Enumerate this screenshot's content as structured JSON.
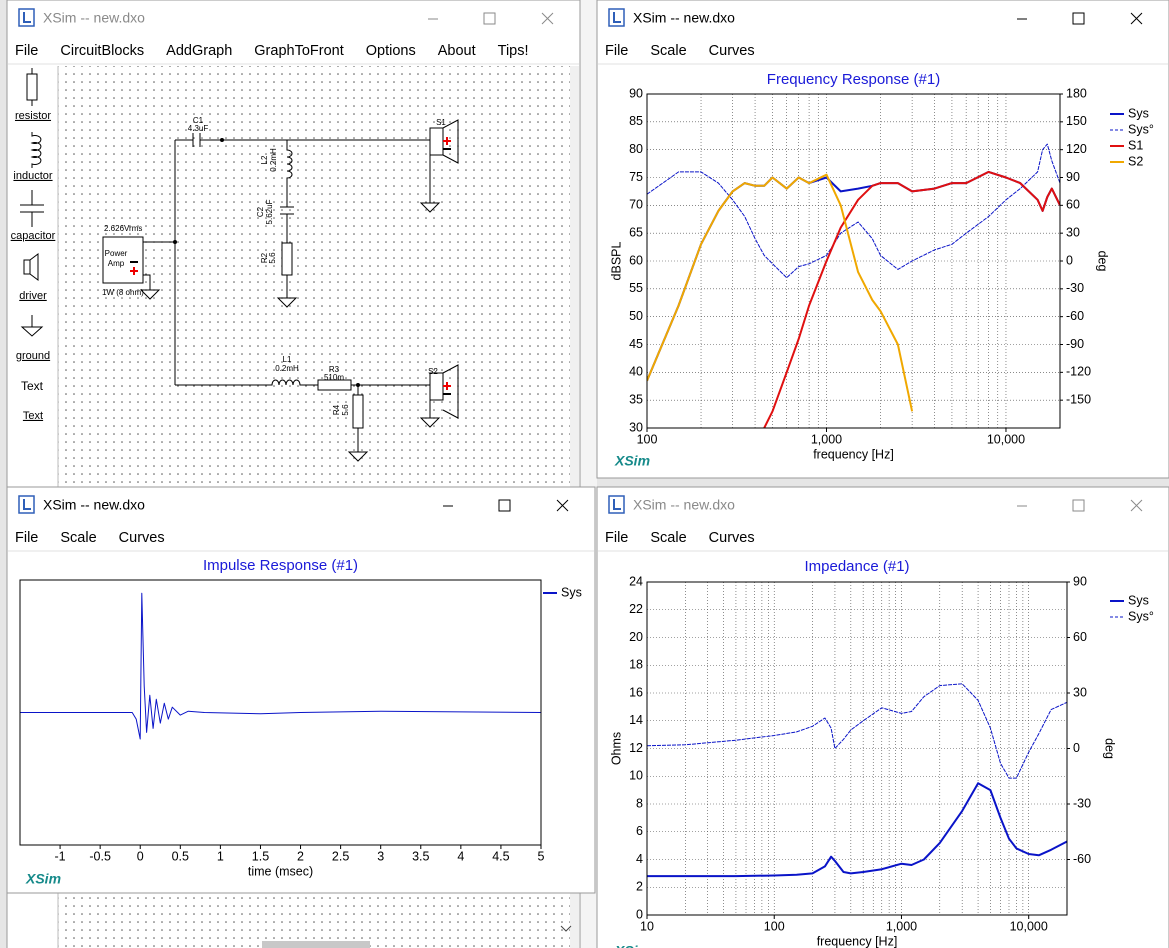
{
  "schematic_window": {
    "title": "XSim -- new.dxo",
    "menu": [
      "File",
      "CircuitBlocks",
      "AddGraph",
      "GraphToFront",
      "Options",
      "About",
      "Tips!"
    ],
    "palette": [
      "resistor",
      "inductor",
      "capacitor",
      "driver",
      "ground",
      "Text"
    ],
    "text_tool": "Text",
    "source": {
      "voltage": "2.626Vrms",
      "name": [
        "Power",
        "Amp"
      ],
      "load": "1W (8 ohm)"
    },
    "components": [
      {
        "ref": "C1",
        "value": "4.3uF"
      },
      {
        "ref": "L2",
        "value": "0.2mH"
      },
      {
        "ref": "C2",
        "value": "5.62uF"
      },
      {
        "ref": "R2",
        "value": "5.6"
      },
      {
        "ref": "L1",
        "value": "0.2mH"
      },
      {
        "ref": "R3",
        "value": "510m"
      },
      {
        "ref": "R4",
        "value": "5.6"
      }
    ],
    "drivers": [
      "S1",
      "S2"
    ]
  },
  "frequency_window": {
    "title": "XSim -- new.dxo",
    "menu": [
      "File",
      "Scale",
      "Curves"
    ],
    "chart": {
      "type": "line",
      "title": "Frequency Response (#1)",
      "brand": "XSim",
      "xlabel": "frequency [Hz]",
      "ylabel": "dBSPL",
      "y2label": "deg",
      "xscale": "log",
      "grid": true,
      "minor_grid": true,
      "xlim": [
        100,
        20000
      ],
      "xticks": [
        100,
        {
          "value": 1000,
          "label": "1,000"
        },
        {
          "value": 10000,
          "label": "10,000"
        }
      ],
      "ylim": [
        30,
        90
      ],
      "yticks": [
        30,
        35,
        40,
        45,
        50,
        55,
        60,
        65,
        70,
        75,
        80,
        85,
        90
      ],
      "y2lim": [
        -180,
        180
      ],
      "y2ticks": [
        -150,
        -120,
        -90,
        -60,
        -30,
        0,
        30,
        60,
        90,
        120,
        150,
        180
      ],
      "x": [
        100,
        150,
        200,
        250,
        300,
        350,
        400,
        450,
        500,
        600,
        700,
        800,
        1000,
        1200,
        1500,
        1800,
        2000,
        2500,
        3000,
        4000,
        5000,
        6000,
        8000,
        10000,
        12000,
        15000,
        16000,
        17000,
        18000,
        20000
      ],
      "series": [
        {
          "name": "Sys",
          "color": "#0a14c8",
          "linestyle": "solid",
          "values": [
            38.5,
            52,
            63,
            69,
            72.5,
            74,
            73.5,
            73.5,
            75,
            73,
            75,
            74,
            75,
            72.5,
            73,
            73.5,
            74,
            74,
            72.5,
            73,
            74,
            74,
            76,
            75,
            74,
            71,
            69,
            71.5,
            73,
            70
          ]
        },
        {
          "name": "Sys°",
          "color": "#0a14c8",
          "linestyle": "dashed",
          "axis": "y2",
          "values": [
            72,
            96,
            96,
            84,
            66,
            48,
            24,
            6,
            -3,
            -18,
            -6,
            -3,
            6,
            30,
            42,
            24,
            6,
            -9,
            0,
            12,
            18,
            30,
            48,
            66,
            78,
            96,
            120,
            126,
            108,
            84
          ]
        },
        {
          "name": "S1",
          "color": "#e01010",
          "linestyle": "solid",
          "values": [
            null,
            null,
            null,
            null,
            null,
            null,
            null,
            30,
            33,
            40,
            46,
            52,
            60,
            66,
            71,
            73.5,
            74,
            74,
            72.5,
            73,
            74,
            74,
            76,
            75,
            74,
            71,
            69,
            71.5,
            73,
            70
          ]
        },
        {
          "name": "S2",
          "color": "#f0a800",
          "linestyle": "solid",
          "values": [
            38.5,
            52,
            63,
            69,
            72.5,
            74,
            73.5,
            73.5,
            75,
            73,
            75,
            74,
            75.5,
            70,
            58,
            53,
            51,
            45,
            33,
            null,
            null,
            null,
            null,
            null,
            null,
            null,
            null,
            null,
            null,
            null
          ]
        }
      ]
    }
  },
  "impulse_window": {
    "title": "XSim -- new.dxo",
    "menu": [
      "File",
      "Scale",
      "Curves"
    ],
    "chart": {
      "type": "line",
      "title": "Impulse Response (#1)",
      "brand": "XSim",
      "xlabel": "time (msec)",
      "xscale": "linear",
      "grid": false,
      "xlim": [
        -1.5,
        5
      ],
      "xticks": [
        -1,
        -0.5,
        0,
        0.5,
        1,
        1.5,
        2,
        2.5,
        3,
        3.5,
        4,
        4.5,
        5
      ],
      "ylim": [
        -1,
        1
      ],
      "x": [
        -1.5,
        -0.1,
        -0.05,
        0,
        0.02,
        0.05,
        0.08,
        0.12,
        0.16,
        0.2,
        0.25,
        0.3,
        0.35,
        0.4,
        0.5,
        0.6,
        0.8,
        1.5,
        2,
        3,
        5
      ],
      "series": [
        {
          "name": "Sys",
          "color": "#0a14c8",
          "linestyle": "solid",
          "values": [
            0,
            0,
            -0.05,
            -0.2,
            0.9,
            0.2,
            -0.15,
            0.13,
            -0.12,
            0.1,
            -0.08,
            0.07,
            -0.05,
            0.04,
            -0.02,
            0.01,
            0,
            -0.01,
            0,
            0.01,
            0
          ]
        }
      ]
    }
  },
  "impedance_window": {
    "title": "XSim -- new.dxo",
    "menu": [
      "File",
      "Scale",
      "Curves"
    ],
    "chart": {
      "type": "line",
      "title": "Impedance (#1)",
      "brand": "XSim",
      "xlabel": "frequency [Hz]",
      "ylabel": "Ohms",
      "y2label": "deg",
      "xscale": "log",
      "grid": true,
      "minor_grid": true,
      "xlim": [
        10,
        20000
      ],
      "xticks": [
        10,
        100,
        {
          "value": 1000,
          "label": "1,000"
        },
        {
          "value": 10000,
          "label": "10,000"
        }
      ],
      "ylim": [
        0,
        24
      ],
      "yticks": [
        0,
        2,
        4,
        6,
        8,
        10,
        12,
        14,
        16,
        18,
        20,
        22,
        24
      ],
      "y2lim": [
        -90,
        90
      ],
      "y2ticks": [
        -60,
        -30,
        0,
        30,
        60,
        90
      ],
      "x": [
        10,
        20,
        50,
        100,
        150,
        200,
        250,
        280,
        300,
        350,
        400,
        500,
        700,
        1000,
        1200,
        1500,
        2000,
        3000,
        4000,
        5000,
        6000,
        7000,
        8000,
        10000,
        12000,
        15000,
        20000
      ],
      "series": [
        {
          "name": "Sys",
          "color": "#0a14c8",
          "linestyle": "solid",
          "values": [
            2.8,
            2.8,
            2.8,
            2.85,
            2.9,
            3.0,
            3.5,
            4.2,
            3.9,
            3.1,
            3.0,
            3.1,
            3.3,
            3.7,
            3.6,
            4.0,
            5.2,
            7.5,
            9.5,
            9.0,
            7.0,
            5.5,
            4.8,
            4.4,
            4.3,
            4.7,
            5.3
          ]
        },
        {
          "name": "Sys°",
          "color": "#0a14c8",
          "linestyle": "dashed",
          "axis": "y2",
          "values": [
            1.5,
            2,
            4.5,
            7,
            9,
            12,
            16.5,
            11,
            0,
            5,
            10,
            15,
            22,
            19,
            20,
            28,
            34,
            35,
            26,
            11,
            -8,
            -16,
            -16,
            -2,
            8,
            21,
            25
          ]
        }
      ]
    }
  }
}
